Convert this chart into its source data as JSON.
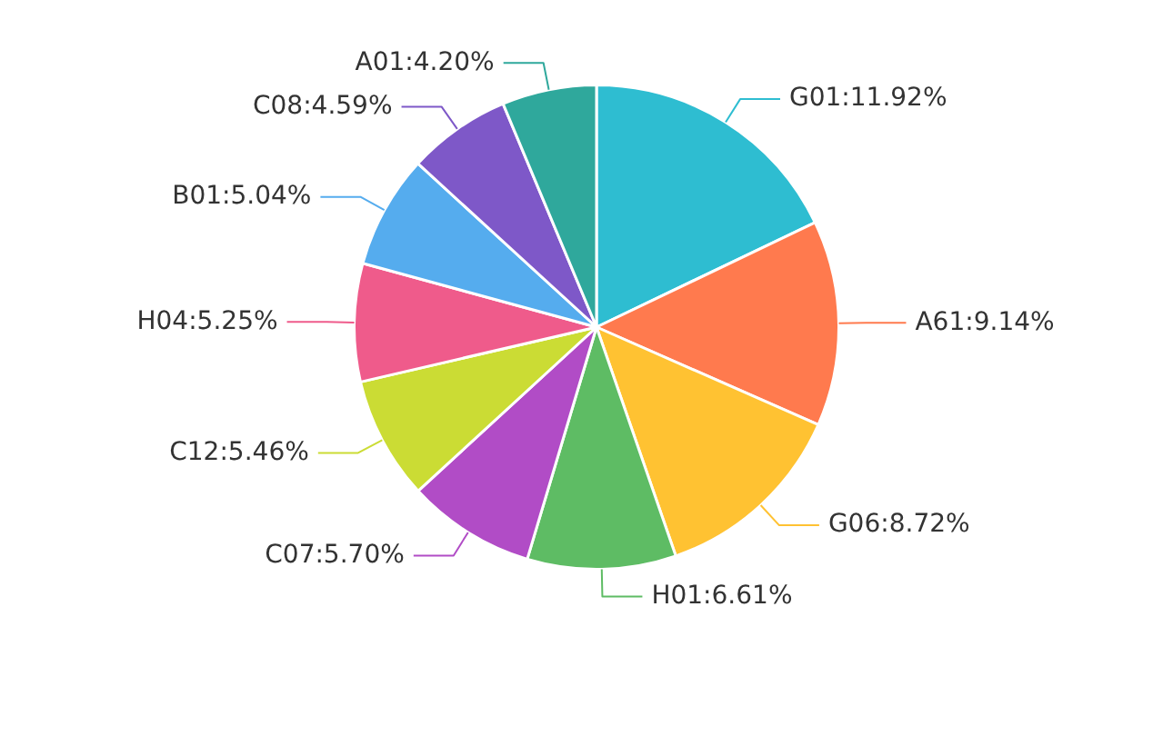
{
  "chart_data": {
    "type": "pie",
    "categories": [
      "G01",
      "A61",
      "G06",
      "H01",
      "C07",
      "C12",
      "H04",
      "B01",
      "C08",
      "A01"
    ],
    "values": [
      11.92,
      9.14,
      8.72,
      6.61,
      5.7,
      5.46,
      5.25,
      5.04,
      4.59,
      4.2
    ],
    "colors": [
      "#2ebdd1",
      "#ff7a4e",
      "#ffc232",
      "#5ebc64",
      "#b14cc6",
      "#cbdc34",
      "#ef5b8b",
      "#55acee",
      "#7e58c8",
      "#2fa89c"
    ],
    "value_labels": [
      ":11.92%",
      ":9.14%",
      ":8.72%",
      ":6.61%",
      ":5.70%",
      ":5.46%",
      ":5.25%",
      ":5.04%",
      ":4.59%",
      ":4.20%"
    ]
  }
}
